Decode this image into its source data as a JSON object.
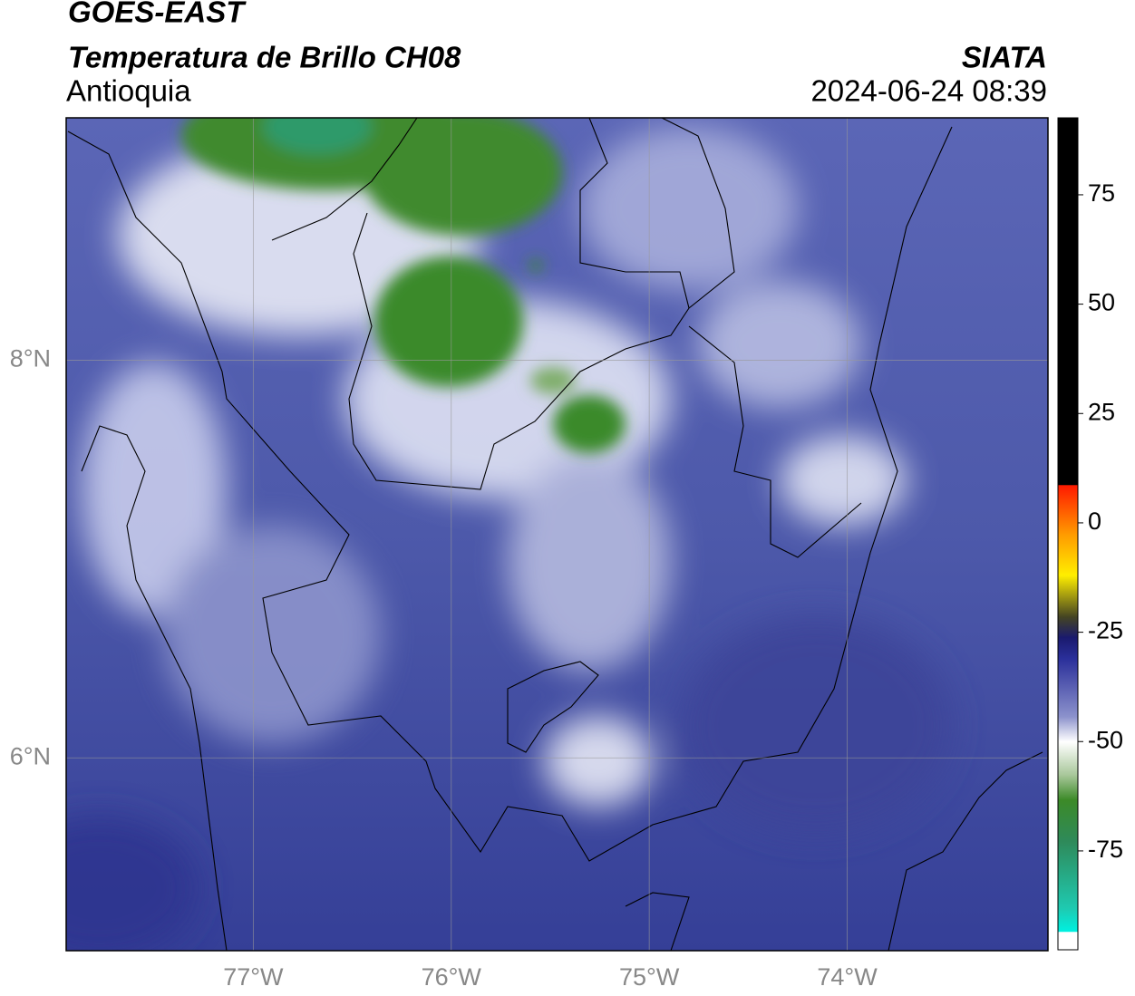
{
  "header": {
    "title": "GOES-EAST",
    "subtitle": "Temperatura de Brillo CH08",
    "region": "Antioquia",
    "source": "SIATA",
    "timestamp": "2024-06-24 08:39"
  },
  "map": {
    "xlim": [
      -77.945,
      -72.986
    ],
    "ylim": [
      5.03,
      9.22
    ],
    "xticks": [
      {
        "value": -77,
        "label": "77°W"
      },
      {
        "value": -76,
        "label": "76°W"
      },
      {
        "value": -75,
        "label": "75°W"
      },
      {
        "value": -74,
        "label": "74°W"
      }
    ],
    "yticks": [
      {
        "value": 6,
        "label": "6°N"
      },
      {
        "value": 8,
        "label": "8°N"
      }
    ],
    "grid": true
  },
  "colorbar": {
    "lim": [
      -97.6,
      92.6
    ],
    "ticks": [
      -75,
      -50,
      -25,
      0,
      25,
      50,
      75
    ]
  }
}
